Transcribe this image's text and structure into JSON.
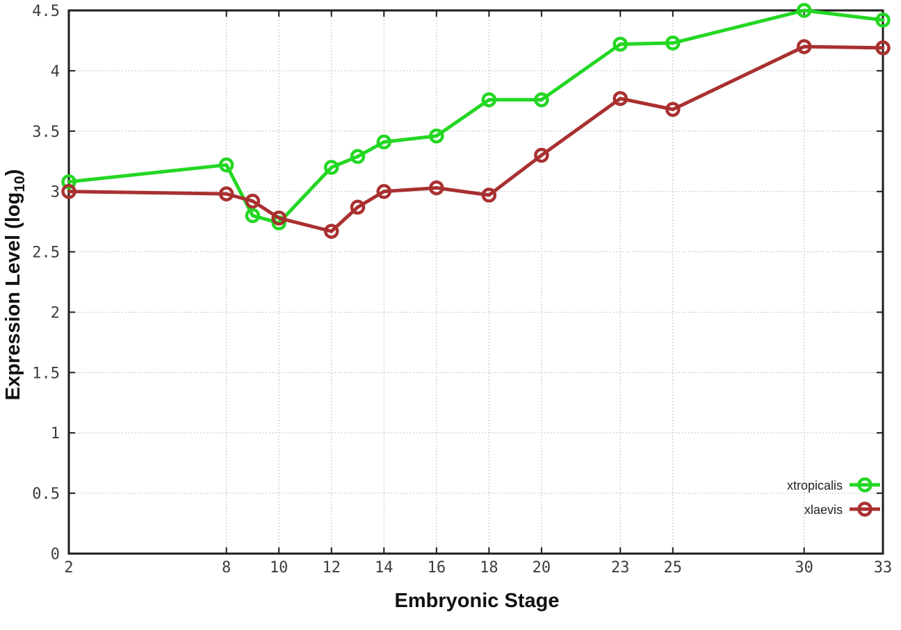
{
  "chart_data": {
    "type": "line",
    "title": "",
    "xlabel": "Embryonic Stage",
    "ylabel_prefix": "Expression Level (log",
    "ylabel_sub": "10",
    "ylabel_suffix": ")",
    "ylabel_full": "Expression Level (log10)",
    "x": [
      2,
      8,
      9,
      10,
      12,
      13,
      14,
      16,
      18,
      20,
      23,
      25,
      30,
      33
    ],
    "series": [
      {
        "name": "xtropicalis",
        "color": "#23d723",
        "values": [
          3.08,
          3.22,
          2.8,
          2.74,
          3.2,
          3.29,
          3.41,
          3.46,
          3.76,
          3.76,
          4.22,
          4.23,
          4.5,
          4.42
        ]
      },
      {
        "name": "xlaevis",
        "color": "#a93030",
        "values": [
          3.0,
          2.98,
          2.92,
          2.78,
          2.67,
          2.87,
          3.0,
          3.03,
          2.97,
          3.3,
          3.77,
          3.68,
          4.2,
          4.19
        ]
      }
    ],
    "xlim": [
      2,
      33
    ],
    "ylim": [
      0,
      4.5
    ],
    "x_ticks": [
      2,
      8,
      10,
      12,
      14,
      16,
      18,
      20,
      23,
      25,
      30,
      33
    ],
    "x_tick_labels": [
      "2",
      "8",
      "10",
      "12",
      "14",
      "16",
      "18",
      "20",
      "23",
      "25",
      "30",
      "33"
    ],
    "y_ticks": [
      0,
      0.5,
      1,
      1.5,
      2,
      2.5,
      3,
      3.5,
      4,
      4.5
    ],
    "y_tick_labels": [
      "0",
      "0.5",
      "1",
      "1.5",
      "2",
      "2.5",
      "3",
      "3.5",
      "4",
      "4.5"
    ],
    "grid": true,
    "legend_position": "bottom-right"
  },
  "styles": {
    "grid_color": "#aeaeae",
    "frame_color": "#1c1c1c",
    "tick_label_color": "#3c3c3c",
    "background": "#ffffff"
  }
}
